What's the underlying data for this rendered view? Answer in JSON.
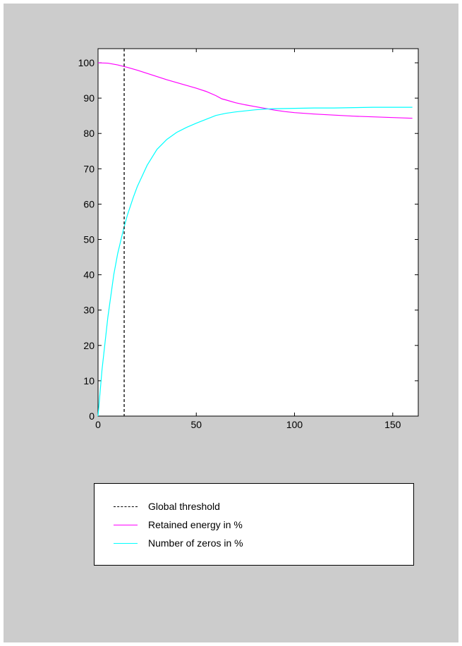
{
  "colors": {
    "window_background": "#cccccc",
    "axes_background": "#ffffff",
    "threshold": "#000000",
    "retained_energy": "#ff00ff",
    "zeros": "#00ffff"
  },
  "legend": {
    "placement": "below plot",
    "entries": [
      {
        "label": "Global threshold",
        "color": "#000000",
        "style": "dashed"
      },
      {
        "label": "Retained energy in %",
        "color": "#ff00ff",
        "style": "solid"
      },
      {
        "label": "Number of zeros in %",
        "color": "#00ffff",
        "style": "solid"
      }
    ]
  },
  "chart_data": {
    "type": "line",
    "title": "",
    "xlabel": "",
    "ylabel": "",
    "xlim": [
      0,
      163
    ],
    "ylim": [
      0,
      104
    ],
    "x_ticks": [
      0,
      50,
      100,
      150
    ],
    "y_ticks": [
      0,
      10,
      20,
      30,
      40,
      50,
      60,
      70,
      80,
      90,
      100
    ],
    "grid": false,
    "threshold_x": 13.3,
    "series": [
      {
        "name": "Retained energy in %",
        "color": "#ff00ff",
        "x": [
          0,
          5,
          10,
          15,
          20,
          25,
          30,
          35,
          40,
          45,
          50,
          55,
          60,
          63,
          65,
          70,
          75,
          80,
          85,
          90,
          95,
          100,
          110,
          120,
          130,
          140,
          150,
          160
        ],
        "y": [
          100,
          99.9,
          99.4,
          98.7,
          97.9,
          97.0,
          96.1,
          95.2,
          94.4,
          93.6,
          92.8,
          91.9,
          90.7,
          89.8,
          89.5,
          88.7,
          88.1,
          87.6,
          87.1,
          86.6,
          86.2,
          85.9,
          85.5,
          85.2,
          84.9,
          84.7,
          84.5,
          84.3
        ]
      },
      {
        "name": "Number of zeros in %",
        "color": "#00ffff",
        "x": [
          0,
          2,
          5,
          8,
          10,
          13,
          15,
          18,
          20,
          25,
          30,
          35,
          40,
          45,
          50,
          55,
          60,
          65,
          70,
          75,
          80,
          85,
          90,
          100,
          110,
          120,
          130,
          140,
          150,
          160
        ],
        "y": [
          0,
          13,
          28,
          40,
          46,
          53,
          57,
          62,
          65,
          71,
          75.5,
          78.3,
          80.3,
          81.7,
          82.9,
          84.0,
          85.1,
          85.7,
          86.1,
          86.4,
          86.7,
          86.9,
          87.0,
          87.1,
          87.2,
          87.2,
          87.3,
          87.4,
          87.4,
          87.4
        ]
      }
    ]
  }
}
